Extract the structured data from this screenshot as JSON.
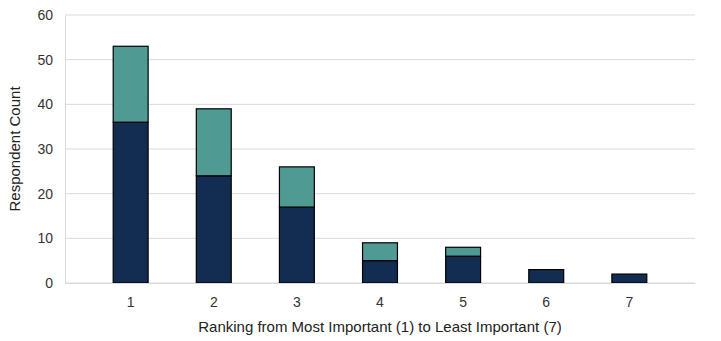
{
  "chart_data": {
    "type": "bar",
    "stacked": true,
    "grid": true,
    "x_label": "Ranking from Most Important (1) to Least Important (7)",
    "y_label": "Respondent Count",
    "categories": [
      "1",
      "2",
      "3",
      "4",
      "5",
      "6",
      "7"
    ],
    "series": [
      {
        "color": "#132d52",
        "values": [
          36,
          24,
          17,
          5,
          6,
          3,
          2
        ]
      },
      {
        "color": "#4f9a93",
        "values": [
          17,
          15,
          9,
          4,
          2,
          0,
          0
        ]
      }
    ],
    "ylim": [
      0,
      60
    ],
    "yticks": [
      0,
      10,
      20,
      30,
      40,
      50,
      60
    ]
  }
}
